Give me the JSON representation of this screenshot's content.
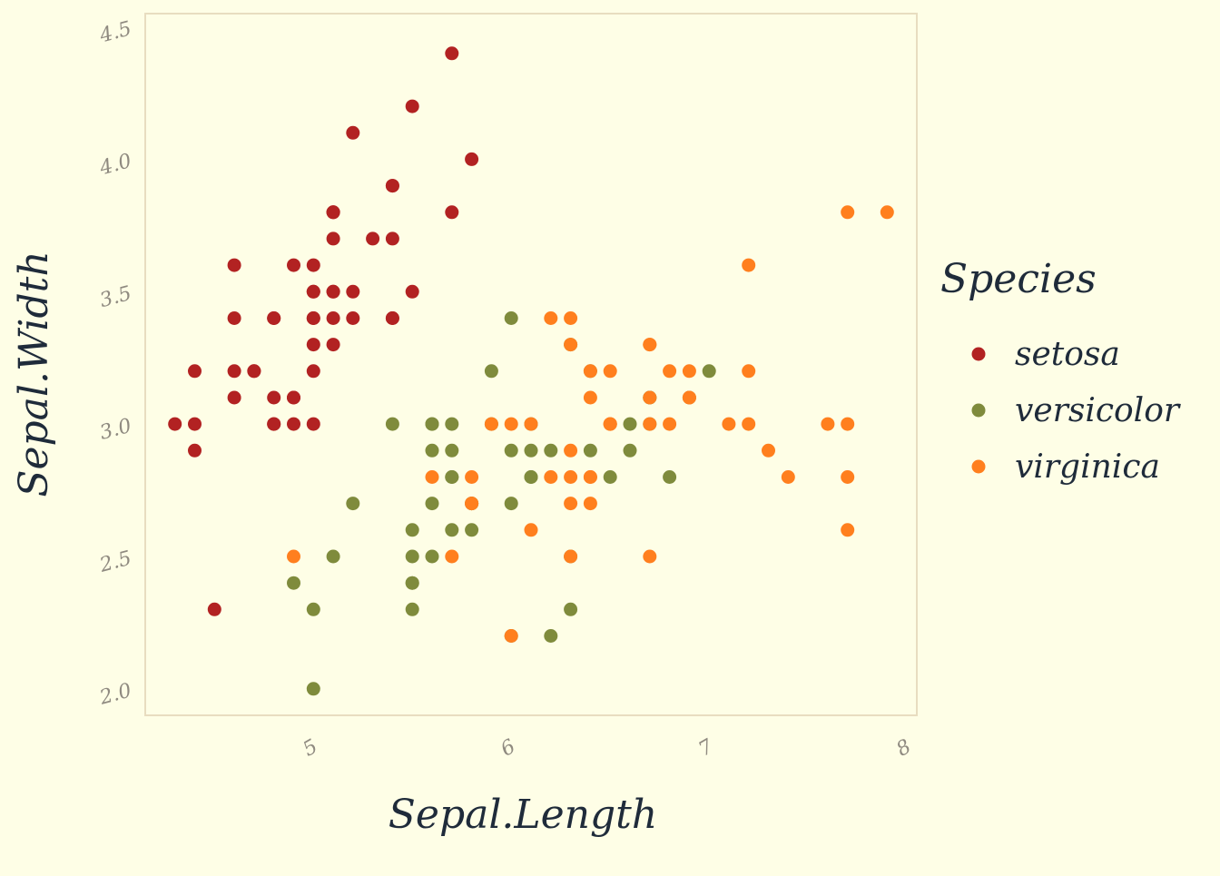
{
  "colors": {
    "background": "#FEFEE6",
    "panel_border": "#E8DDC0",
    "tick_text": "#8F8A80",
    "title_text": "#1F2B3A",
    "setosa": "#B22222",
    "versicolor": "#7F8B3C",
    "virginica": "#FF7F1E"
  },
  "chart_data": {
    "type": "scatter",
    "title": "",
    "xlabel": "Sepal.Length",
    "ylabel": "Sepal.Width",
    "xlim": [
      4.15,
      8.05
    ],
    "ylim": [
      1.9,
      4.55
    ],
    "xticks": [
      5,
      6,
      7,
      8
    ],
    "xtick_labels": [
      "5",
      "6",
      "7",
      "8"
    ],
    "yticks": [
      2.0,
      2.5,
      3.0,
      3.5,
      4.0,
      4.5
    ],
    "ytick_labels": [
      "2.0",
      "2.5",
      "3.0",
      "3.5",
      "4.0",
      "4.5"
    ],
    "grid": false,
    "legend": {
      "title": "Species",
      "placement": "right"
    },
    "series": [
      {
        "name": "setosa",
        "color": "#B22222",
        "points": [
          [
            5.1,
            3.5
          ],
          [
            4.9,
            3.0
          ],
          [
            4.7,
            3.2
          ],
          [
            4.6,
            3.1
          ],
          [
            5.0,
            3.6
          ],
          [
            5.4,
            3.9
          ],
          [
            4.6,
            3.4
          ],
          [
            5.0,
            3.4
          ],
          [
            4.4,
            2.9
          ],
          [
            4.9,
            3.1
          ],
          [
            5.4,
            3.7
          ],
          [
            4.8,
            3.4
          ],
          [
            4.8,
            3.0
          ],
          [
            4.3,
            3.0
          ],
          [
            5.8,
            4.0
          ],
          [
            5.7,
            4.4
          ],
          [
            5.4,
            3.9
          ],
          [
            5.1,
            3.5
          ],
          [
            5.7,
            3.8
          ],
          [
            5.1,
            3.8
          ],
          [
            5.4,
            3.4
          ],
          [
            5.1,
            3.7
          ],
          [
            4.6,
            3.6
          ],
          [
            5.1,
            3.3
          ],
          [
            4.8,
            3.4
          ],
          [
            5.0,
            3.0
          ],
          [
            5.0,
            3.4
          ],
          [
            5.2,
            3.5
          ],
          [
            5.2,
            3.4
          ],
          [
            4.7,
            3.2
          ],
          [
            4.8,
            3.1
          ],
          [
            5.4,
            3.4
          ],
          [
            5.2,
            4.1
          ],
          [
            5.5,
            4.2
          ],
          [
            4.9,
            3.1
          ],
          [
            5.0,
            3.2
          ],
          [
            5.5,
            3.5
          ],
          [
            4.9,
            3.6
          ],
          [
            4.4,
            3.0
          ],
          [
            5.1,
            3.4
          ],
          [
            5.0,
            3.5
          ],
          [
            4.5,
            2.3
          ],
          [
            4.4,
            3.2
          ],
          [
            5.0,
            3.5
          ],
          [
            5.1,
            3.8
          ],
          [
            4.8,
            3.0
          ],
          [
            5.1,
            3.8
          ],
          [
            4.6,
            3.2
          ],
          [
            5.3,
            3.7
          ],
          [
            5.0,
            3.3
          ]
        ]
      },
      {
        "name": "versicolor",
        "color": "#7F8B3C",
        "points": [
          [
            7.0,
            3.2
          ],
          [
            6.4,
            3.2
          ],
          [
            6.9,
            3.1
          ],
          [
            5.5,
            2.3
          ],
          [
            6.5,
            2.8
          ],
          [
            5.7,
            2.8
          ],
          [
            6.3,
            3.3
          ],
          [
            4.9,
            2.4
          ],
          [
            6.6,
            2.9
          ],
          [
            5.2,
            2.7
          ],
          [
            5.0,
            2.0
          ],
          [
            5.9,
            3.0
          ],
          [
            6.0,
            2.2
          ],
          [
            6.1,
            2.9
          ],
          [
            5.6,
            2.9
          ],
          [
            6.7,
            3.1
          ],
          [
            5.6,
            3.0
          ],
          [
            5.8,
            2.7
          ],
          [
            6.2,
            2.2
          ],
          [
            5.6,
            2.5
          ],
          [
            5.9,
            3.2
          ],
          [
            6.1,
            2.8
          ],
          [
            6.3,
            2.5
          ],
          [
            6.1,
            2.8
          ],
          [
            6.4,
            2.9
          ],
          [
            6.6,
            3.0
          ],
          [
            6.8,
            2.8
          ],
          [
            6.7,
            3.0
          ],
          [
            6.0,
            2.9
          ],
          [
            5.7,
            2.6
          ],
          [
            5.5,
            2.4
          ],
          [
            5.5,
            2.4
          ],
          [
            5.8,
            2.7
          ],
          [
            6.0,
            2.7
          ],
          [
            5.4,
            3.0
          ],
          [
            6.0,
            3.4
          ],
          [
            6.7,
            3.1
          ],
          [
            6.3,
            2.3
          ],
          [
            5.6,
            3.0
          ],
          [
            5.5,
            2.5
          ],
          [
            5.5,
            2.6
          ],
          [
            6.1,
            3.0
          ],
          [
            5.8,
            2.6
          ],
          [
            5.0,
            2.3
          ],
          [
            5.6,
            2.7
          ],
          [
            5.7,
            3.0
          ],
          [
            5.7,
            2.9
          ],
          [
            6.2,
            2.9
          ],
          [
            5.1,
            2.5
          ],
          [
            5.7,
            2.8
          ]
        ]
      },
      {
        "name": "virginica",
        "color": "#FF7F1E",
        "points": [
          [
            6.3,
            3.3
          ],
          [
            5.8,
            2.7
          ],
          [
            7.1,
            3.0
          ],
          [
            6.3,
            2.9
          ],
          [
            6.5,
            3.0
          ],
          [
            7.6,
            3.0
          ],
          [
            4.9,
            2.5
          ],
          [
            7.3,
            2.9
          ],
          [
            6.7,
            2.5
          ],
          [
            7.2,
            3.6
          ],
          [
            6.5,
            3.2
          ],
          [
            6.4,
            2.7
          ],
          [
            6.8,
            3.0
          ],
          [
            5.7,
            2.5
          ],
          [
            5.8,
            2.8
          ],
          [
            6.4,
            3.2
          ],
          [
            6.5,
            3.0
          ],
          [
            7.7,
            3.8
          ],
          [
            7.7,
            2.6
          ],
          [
            6.0,
            2.2
          ],
          [
            6.9,
            3.2
          ],
          [
            5.6,
            2.8
          ],
          [
            7.7,
            2.8
          ],
          [
            6.3,
            2.7
          ],
          [
            6.7,
            3.3
          ],
          [
            7.2,
            3.2
          ],
          [
            6.2,
            2.8
          ],
          [
            6.1,
            3.0
          ],
          [
            6.4,
            2.8
          ],
          [
            7.2,
            3.0
          ],
          [
            7.4,
            2.8
          ],
          [
            7.9,
            3.8
          ],
          [
            6.4,
            2.8
          ],
          [
            6.3,
            2.8
          ],
          [
            6.1,
            2.6
          ],
          [
            7.7,
            3.0
          ],
          [
            6.3,
            3.4
          ],
          [
            6.4,
            3.1
          ],
          [
            6.0,
            3.0
          ],
          [
            6.9,
            3.1
          ],
          [
            6.7,
            3.1
          ],
          [
            6.9,
            3.1
          ],
          [
            5.8,
            2.7
          ],
          [
            6.8,
            3.2
          ],
          [
            6.7,
            3.3
          ],
          [
            6.7,
            3.0
          ],
          [
            6.3,
            2.5
          ],
          [
            6.5,
            3.0
          ],
          [
            6.2,
            3.4
          ],
          [
            5.9,
            3.0
          ]
        ]
      }
    ]
  }
}
